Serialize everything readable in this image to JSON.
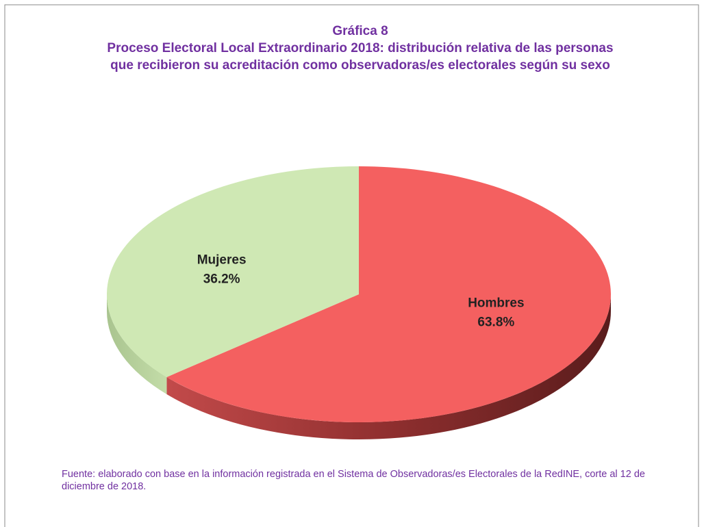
{
  "chart_data": {
    "type": "pie",
    "title": "Gráfica 8",
    "subtitle": "Proceso Electoral Local Extraordinario 2018: distribución relativa de las personas que recibieron su acreditación como observadoras/es electorales según su sexo",
    "categories": [
      "Hombres",
      "Mujeres"
    ],
    "values": [
      63.8,
      36.2
    ],
    "value_labels": [
      "63.8%",
      "36.2%"
    ],
    "colors": [
      "#f46060",
      "#cfe8b4"
    ],
    "source": "Fuente: elaborado con base en la información registrada en el Sistema de Observadoras/es Electorales de la RedINE, corte al 12 de diciembre de 2018."
  }
}
